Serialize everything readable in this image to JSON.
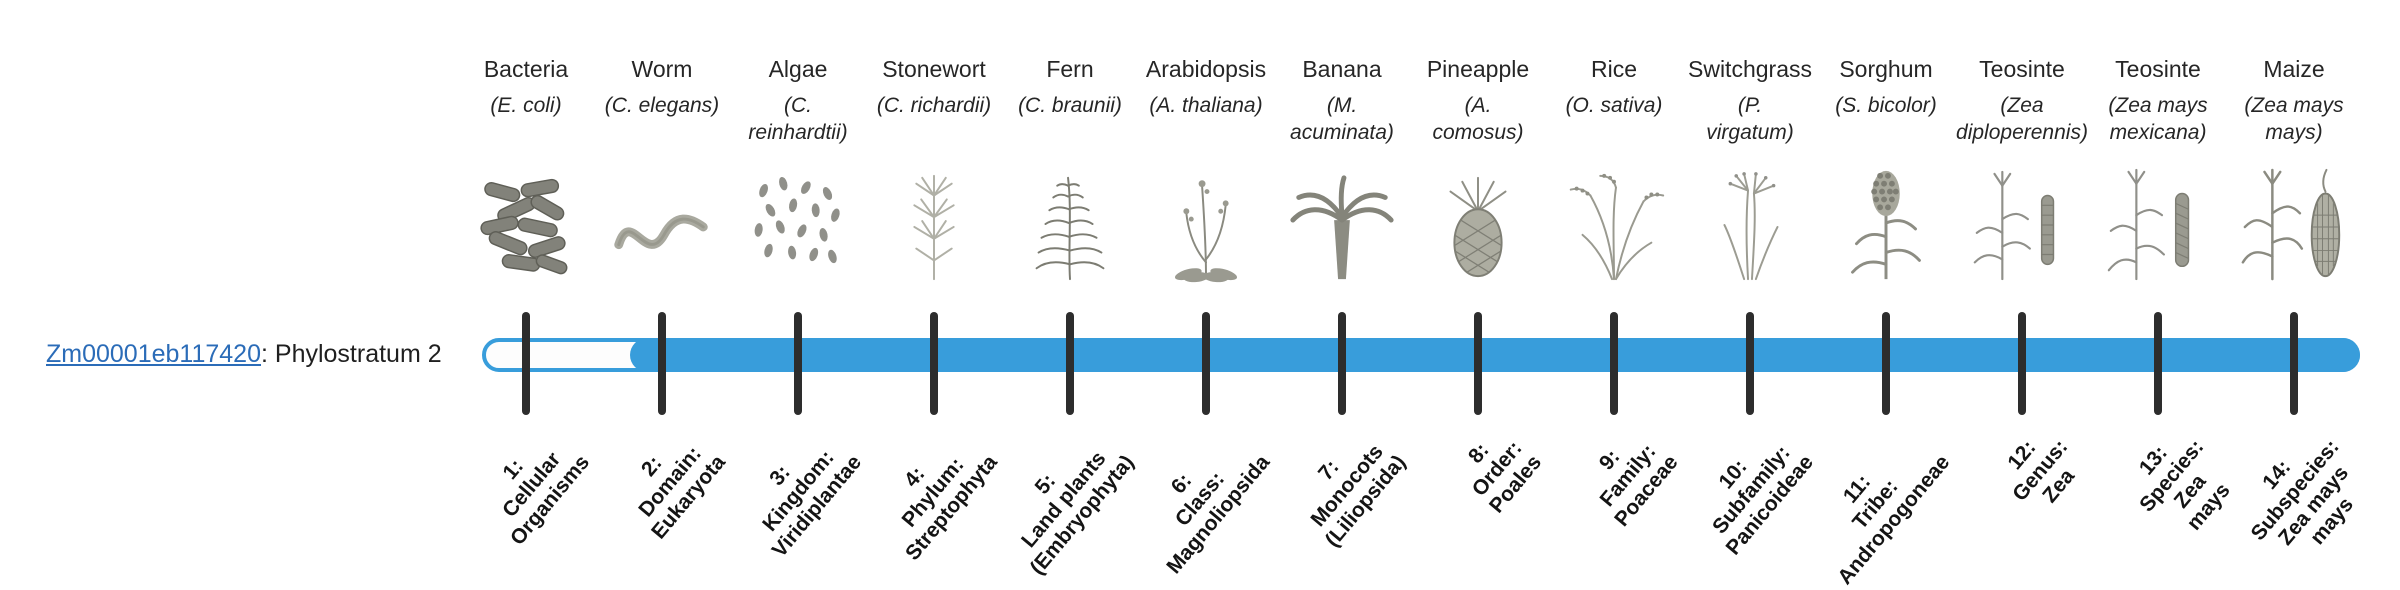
{
  "gene": {
    "id": "Zm00001eb117420",
    "suffix": ": Phylostratum 2"
  },
  "bar": {
    "total_strata": 14,
    "filled_from_stratum": 2
  },
  "colors": {
    "bar_fill": "#389ddb",
    "tick": "#2d2d2d",
    "link": "#2b6cb8"
  },
  "strata": [
    {
      "num": 1,
      "common": "Bacteria",
      "sci": "(E. coli)",
      "icon": "bacteria-icon",
      "rank_label": "1:\nCellular\nOrganisms"
    },
    {
      "num": 2,
      "common": "Worm",
      "sci": "(C. elegans)",
      "icon": "worm-icon",
      "rank_label": "2:\nDomain:\nEukaryota"
    },
    {
      "num": 3,
      "common": "Algae",
      "sci": "(C.\nreinhardtii)",
      "icon": "algae-icon",
      "rank_label": "3:\nKingdom:\nViridiplantae"
    },
    {
      "num": 4,
      "common": "Stonewort",
      "sci": "(C. richardii)",
      "icon": "stonewort-icon",
      "rank_label": "4:\nPhylum:\nStreptophyta"
    },
    {
      "num": 5,
      "common": "Fern",
      "sci": "(C. braunii)",
      "icon": "fern-icon",
      "rank_label": "5:\nLand plants\n(Embryophyta)"
    },
    {
      "num": 6,
      "common": "Arabidopsis",
      "sci": "(A. thaliana)",
      "icon": "arabidopsis-icon",
      "rank_label": "6:\nClass:\nMagnoliopsida"
    },
    {
      "num": 7,
      "common": "Banana",
      "sci": "(M.\nacuminata)",
      "icon": "banana-plant-icon",
      "rank_label": "7:\nMonocots\n(Liliopsida)"
    },
    {
      "num": 8,
      "common": "Pineapple",
      "sci": "(A.\ncomosus)",
      "icon": "pineapple-icon",
      "rank_label": "8:\nOrder:\nPoales"
    },
    {
      "num": 9,
      "common": "Rice",
      "sci": "(O. sativa)",
      "icon": "rice-plant-icon",
      "rank_label": "9:\nFamily:\nPoaceae"
    },
    {
      "num": 10,
      "common": "Switchgrass",
      "sci": "(P.\nvirgatum)",
      "icon": "switchgrass-icon",
      "rank_label": "10:\nSubfamily:\nPanicoideae"
    },
    {
      "num": 11,
      "common": "Sorghum",
      "sci": "(S. bicolor)",
      "icon": "sorghum-icon",
      "rank_label": "11:\nTribe:\nAndropogoneae"
    },
    {
      "num": 12,
      "common": "Teosinte",
      "sci": "(Zea\ndiploperennis)",
      "icon": "teosinte-icon",
      "rank_label": "12:\nGenus:\nZea"
    },
    {
      "num": 13,
      "common": "Teosinte",
      "sci": "(Zea mays\nmexicana)",
      "icon": "teosinte-mexicana-icon",
      "rank_label": "13:\nSpecies:\nZea\nmays"
    },
    {
      "num": 14,
      "common": "Maize",
      "sci": "(Zea mays\nmays)",
      "icon": "maize-icon",
      "rank_label": "14:\nSubspecies:\nZea mays\nmays"
    }
  ]
}
